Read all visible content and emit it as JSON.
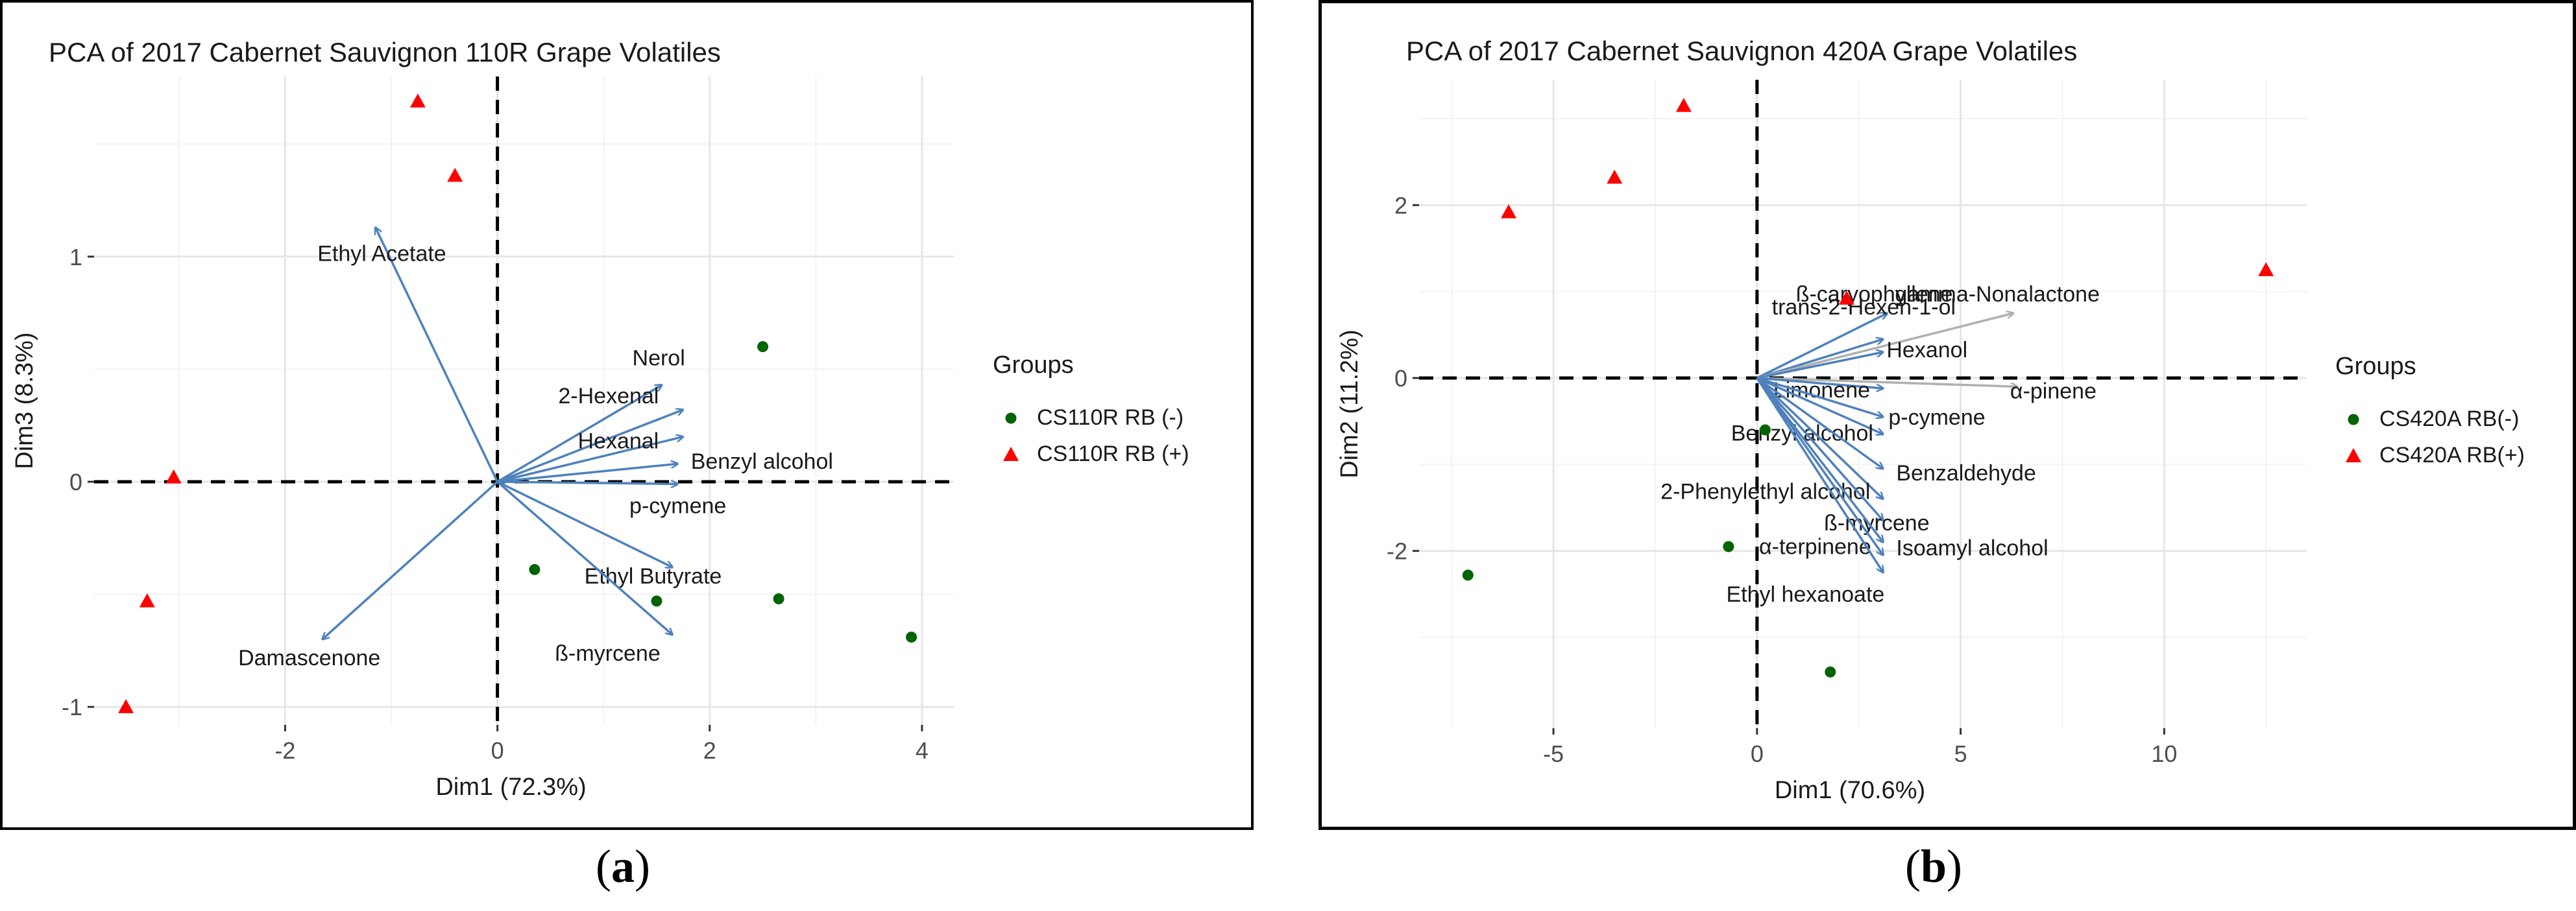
{
  "captions": {
    "a": {
      "open": "(",
      "letter": "a",
      "close": ")"
    },
    "b": {
      "open": "(",
      "letter": "b",
      "close": ")"
    }
  },
  "chart_data": [
    {
      "type": "scatter",
      "subtype": "pca-biplot",
      "title": "PCA of 2017 Cabernet Sauvignon 110R Grape Volatiles",
      "xlabel": "Dim1 (72.3%)",
      "ylabel": "Dim3 (8.3%)",
      "xlim": [
        -3.8,
        4.3
      ],
      "ylim": [
        -1.08,
        1.8
      ],
      "xticks": [
        -2,
        0,
        2,
        4
      ],
      "xtick_labels": [
        "-2",
        "0",
        "2",
        "4"
      ],
      "yticks": [
        -1,
        0,
        1
      ],
      "ytick_labels": [
        "-1",
        "0",
        "1"
      ],
      "grid": true,
      "legend_title": "Groups",
      "legend_position": "right",
      "series": [
        {
          "name": "CS110R RB (-)",
          "marker": "circle",
          "color": "#006400",
          "points": [
            [
              2.5,
              0.6
            ],
            [
              0.35,
              -0.39
            ],
            [
              1.5,
              -0.53
            ],
            [
              2.65,
              -0.52
            ],
            [
              3.9,
              -0.69
            ]
          ]
        },
        {
          "name": "CS110R RB (+)",
          "marker": "triangle",
          "color": "#ff0000",
          "points": [
            [
              -0.75,
              1.69
            ],
            [
              -0.4,
              1.36
            ],
            [
              -3.05,
              0.02
            ],
            [
              -3.3,
              -0.53
            ],
            [
              -3.5,
              -1.0
            ]
          ]
        }
      ],
      "vectors": [
        {
          "label": "Ethyl Acetate",
          "x": -1.15,
          "y": 1.13
        },
        {
          "label": "Nerol",
          "x": 1.55,
          "y": 0.43
        },
        {
          "label": "2-Hexenal",
          "x": 1.75,
          "y": 0.32
        },
        {
          "label": "Hexanal",
          "x": 1.75,
          "y": 0.2
        },
        {
          "label": "Benzyl alcohol",
          "x": 1.7,
          "y": 0.08
        },
        {
          "label": "p-cymene",
          "x": 1.7,
          "y": -0.01
        },
        {
          "label": "Ethyl Butyrate",
          "x": 1.65,
          "y": -0.38
        },
        {
          "label": "ß-myrcene",
          "x": 1.65,
          "y": -0.68
        },
        {
          "label": "Damascenone",
          "x": -1.65,
          "y": -0.7
        }
      ]
    },
    {
      "type": "scatter",
      "subtype": "pca-biplot",
      "title": "PCA of 2017 Cabernet Sauvignon 420A Grape Volatiles",
      "xlabel": "Dim1 (70.6%)",
      "ylabel": "Dim2 (11.2%)",
      "xlim": [
        -8.3,
        13.5
      ],
      "ylim": [
        -4.05,
        3.45
      ],
      "xticks": [
        -5,
        0,
        5,
        10
      ],
      "xtick_labels": [
        "-5",
        "0",
        "5",
        "10"
      ],
      "yticks": [
        -2,
        0,
        2
      ],
      "ytick_labels": [
        "-2",
        "0",
        "2"
      ],
      "grid": true,
      "legend_title": "Groups",
      "legend_position": "right",
      "series": [
        {
          "name": "CS420A RB(-)",
          "marker": "circle",
          "color": "#006400",
          "points": [
            [
              -7.1,
              -2.28
            ],
            [
              -0.7,
              -1.95
            ],
            [
              1.8,
              -3.4
            ],
            [
              0.2,
              -0.6
            ]
          ]
        },
        {
          "name": "CS420A RB(+)",
          "marker": "triangle",
          "color": "#ff0000",
          "points": [
            [
              -6.1,
              1.92
            ],
            [
              -3.5,
              2.32
            ],
            [
              -1.8,
              3.15
            ],
            [
              12.5,
              1.25
            ],
            [
              2.2,
              0.92
            ]
          ]
        }
      ],
      "vectors": [
        {
          "label": "ß-caryophyllene",
          "x": 3.2,
          "y": 0.75
        },
        {
          "label": "trans-2-Hexen-1-ol",
          "x": 3.1,
          "y": 0.45
        },
        {
          "label": "gamma-Nonalactone",
          "x": 6.3,
          "y": 0.75,
          "color": "#b0b0b0"
        },
        {
          "label": "Hexanol",
          "x": 3.1,
          "y": 0.3
        },
        {
          "label": "α-pinene",
          "x": 6.4,
          "y": -0.1,
          "color": "#b0b0b0"
        },
        {
          "label": "Limonene",
          "x": 3.1,
          "y": -0.12
        },
        {
          "label": "p-cymene",
          "x": 3.1,
          "y": -0.45
        },
        {
          "label": "Benzyl alcohol",
          "x": 3.1,
          "y": -0.65
        },
        {
          "label": "Benzaldehyde",
          "x": 3.1,
          "y": -1.05
        },
        {
          "label": "2-Phenylethyl alcohol",
          "x": 3.1,
          "y": -1.4
        },
        {
          "label": "ß-myrcene",
          "x": 3.1,
          "y": -1.65
        },
        {
          "label": "α-terpinene",
          "x": 3.1,
          "y": -2.05
        },
        {
          "label": "Isoamyl alcohol",
          "x": 3.1,
          "y": -1.9
        },
        {
          "label": "Ethyl hexanoate",
          "x": 3.1,
          "y": -2.25
        }
      ]
    }
  ]
}
